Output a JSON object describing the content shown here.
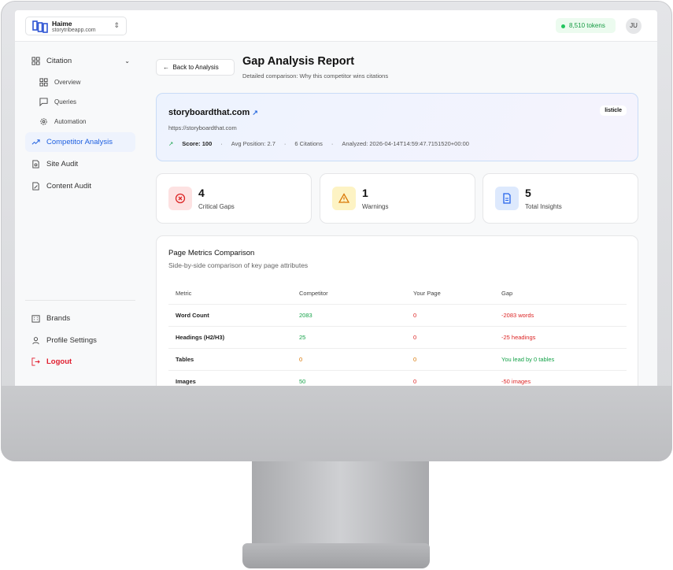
{
  "header": {
    "brand_name": "Haime",
    "brand_domain": "storytribeapp.com",
    "tokens": "8,510 tokens",
    "avatar": "JU"
  },
  "sidebar": {
    "items": [
      {
        "label": "Citation",
        "icon": "grid-icon"
      },
      {
        "label": "Overview",
        "icon": "grid-icon"
      },
      {
        "label": "Queries",
        "icon": "message-icon"
      },
      {
        "label": "Automation",
        "icon": "gear-icon"
      },
      {
        "label": "Competitor Analysis",
        "icon": "trending-up-icon",
        "active": true
      },
      {
        "label": "Site Audit",
        "icon": "file-search-icon"
      },
      {
        "label": "Content Audit",
        "icon": "file-edit-icon"
      }
    ],
    "bottom": [
      {
        "label": "Brands",
        "icon": "building-icon"
      },
      {
        "label": "Profile Settings",
        "icon": "user-icon"
      },
      {
        "label": "Logout",
        "icon": "logout-icon"
      }
    ]
  },
  "page": {
    "back": "Back to Analysis",
    "title": "Gap Analysis Report",
    "subtitle": "Detailed comparison: Why this competitor wins citations"
  },
  "competitor": {
    "domain": "storyboardthat.com",
    "url": "https://storyboardthat.com",
    "score": "Score: 100",
    "avg_position": "Avg Position: 2.7",
    "citations": "6 Citations",
    "analyzed": "Analyzed: 2026-04-14T14:59:47.7151520+00:00",
    "tag": "listicle"
  },
  "stats": [
    {
      "value": "4",
      "label": "Critical Gaps",
      "color": "#dc2626"
    },
    {
      "value": "1",
      "label": "Warnings",
      "color": "#d97706"
    },
    {
      "value": "5",
      "label": "Total Insights",
      "color": "#2563eb"
    }
  ],
  "metrics": {
    "title": "Page Metrics Comparison",
    "subtitle": "Side-by-side comparison of key page attributes",
    "columns": [
      "Metric",
      "Competitor",
      "Your Page",
      "Gap"
    ],
    "rows": [
      [
        "Word Count",
        "2083",
        "0",
        "-2083 words"
      ],
      [
        "Headings (H2/H3)",
        "25",
        "0",
        "-25 headings"
      ],
      [
        "Tables",
        "0",
        "0",
        "You lead by 0 tables"
      ],
      [
        "Images",
        "50",
        "0",
        "-50 images"
      ]
    ]
  }
}
